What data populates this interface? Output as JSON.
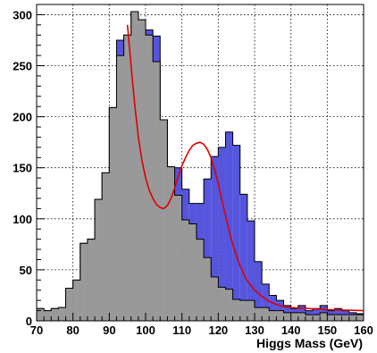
{
  "chart_data": {
    "type": "bar",
    "title": "",
    "xlabel": "Higgs Mass (GeV)",
    "ylabel": "",
    "xlim": [
      70,
      160
    ],
    "ylim": [
      0,
      310
    ],
    "grid": true,
    "x_ticks": [
      70,
      80,
      90,
      100,
      110,
      120,
      130,
      140,
      150,
      160
    ],
    "y_ticks": [
      0,
      50,
      100,
      150,
      200,
      250,
      300
    ],
    "bin_width": 2,
    "bin_edges_start": 70,
    "series": [
      {
        "fill": "#999999",
        "values": [
          12,
          10,
          12,
          13,
          32,
          40,
          76,
          80,
          119,
          145,
          209,
          260,
          280,
          303,
          295,
          280,
          254,
          197,
          151,
          123,
          99,
          95,
          80,
          62,
          43,
          33,
          31,
          21,
          20,
          20,
          13,
          13,
          10,
          10,
          8,
          8,
          8,
          6,
          6,
          8,
          6,
          6,
          6,
          6,
          6
        ]
      },
      {
        "fill": "#5555dd",
        "values": [
          12,
          10,
          12,
          13,
          32,
          40,
          76,
          80,
          119,
          145,
          209,
          275,
          280,
          303,
          295,
          285,
          279,
          197,
          151,
          150,
          129,
          115,
          115,
          139,
          161,
          170,
          185,
          172,
          124,
          98,
          58,
          36,
          25,
          20,
          15,
          12,
          15,
          10,
          12,
          15,
          10,
          12,
          10,
          8,
          7
        ]
      }
    ],
    "fit_color": "#dd0000",
    "fit_curve": {
      "x": [
        95,
        96,
        97,
        98,
        99,
        100,
        101,
        102,
        103,
        104,
        105,
        106,
        107,
        108,
        109,
        110,
        111,
        112,
        113,
        114,
        115,
        116,
        117,
        118,
        119,
        120,
        121,
        122,
        123,
        124,
        125,
        126,
        127,
        128,
        130,
        132,
        134,
        136,
        138,
        140,
        145,
        150,
        155,
        160
      ],
      "y": [
        290,
        250,
        212,
        180,
        157,
        140,
        128,
        120,
        114,
        111,
        110,
        113,
        120,
        130,
        142,
        152,
        160,
        167,
        172,
        174,
        175,
        173,
        168,
        160,
        148,
        134,
        118,
        103,
        88,
        75,
        64,
        54,
        46,
        39,
        30,
        24,
        19,
        16,
        14,
        13,
        12,
        11,
        10.5,
        10
      ]
    }
  }
}
